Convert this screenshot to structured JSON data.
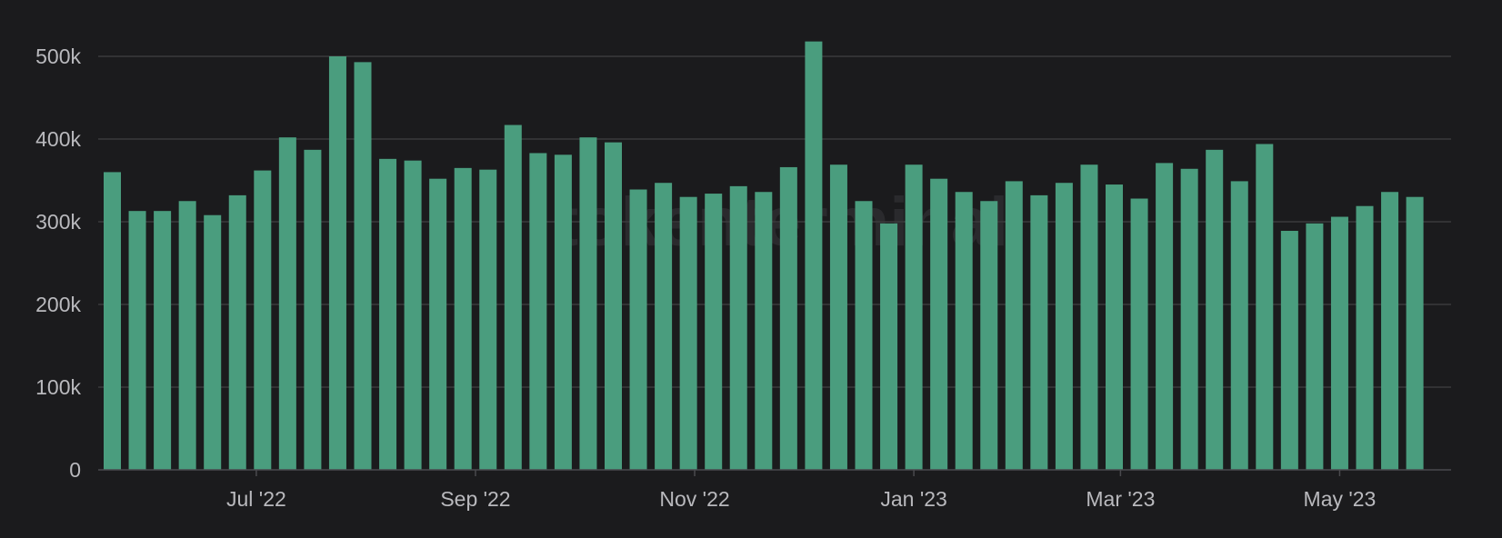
{
  "chart_data": {
    "type": "bar",
    "title": "",
    "xlabel": "",
    "ylabel": "",
    "ylim": [
      0,
      500000
    ],
    "yticks": [
      0,
      100000,
      200000,
      300000,
      400000,
      500000
    ],
    "ytick_labels": [
      "0",
      "100k",
      "200k",
      "300k",
      "400k",
      "500k"
    ],
    "xtick_labels": [
      "Jul '22",
      "Sep '22",
      "Nov '22",
      "Jan '23",
      "Mar '23",
      "May '23"
    ],
    "xtick_positions": [
      5.75,
      14.5,
      23.25,
      32,
      40.25,
      49
    ],
    "grid": true,
    "legend": "none",
    "bar_color": "#4a9d7e",
    "watermark": "tokenterminal",
    "values": [
      360000,
      313000,
      313000,
      325000,
      308000,
      332000,
      362000,
      402000,
      387000,
      500000,
      493000,
      376000,
      374000,
      352000,
      365000,
      363000,
      417000,
      383000,
      381000,
      402000,
      396000,
      339000,
      347000,
      330000,
      334000,
      343000,
      336000,
      366000,
      518000,
      369000,
      325000,
      298000,
      369000,
      352000,
      336000,
      325000,
      349000,
      332000,
      347000,
      369000,
      345000,
      328000,
      371000,
      364000,
      387000,
      349000,
      394000,
      289000,
      298000,
      306000,
      319000,
      336000,
      330000
    ]
  }
}
